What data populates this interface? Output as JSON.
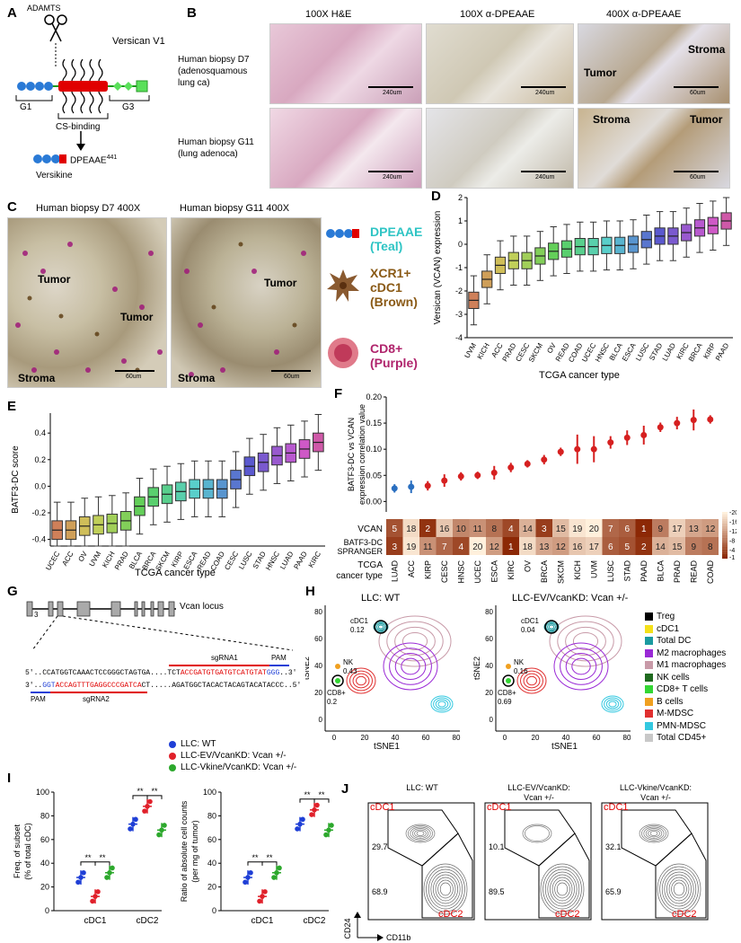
{
  "panel_labels": [
    "A",
    "B",
    "C",
    "D",
    "E",
    "F",
    "G",
    "H",
    "I",
    "J"
  ],
  "panel_a": {
    "enzyme": "ADAMTS",
    "protein": "Versican V1",
    "domains": [
      "G1",
      "G3"
    ],
    "cs_label": "CS-binding",
    "product": "DPEAAE",
    "product_sup": "441",
    "product_name": "Versikine"
  },
  "panel_b": {
    "col_titles": [
      "100X H&E",
      "100X α-DPEAAE",
      "400X α-DPEAAE"
    ],
    "row1_label": [
      "Human biopsy D7",
      "(adenosquamous",
      "lung ca)"
    ],
    "row2_label": [
      "Human biopsy G11",
      "(lung adenoca)"
    ],
    "scale_100x": "240um",
    "scale_400x": "60um",
    "tumor": "Tumor",
    "stroma": "Stroma"
  },
  "panel_c": {
    "titles": [
      "Human biopsy D7 400X",
      "Human biopsy G11 400X"
    ],
    "tumor": "Tumor",
    "stroma": "Stroma",
    "scale": "60um",
    "legend": [
      {
        "l1": "DPEAAE",
        "l2": "(Teal)",
        "color": "#2ec4c4"
      },
      {
        "l1": "XCR1+",
        "l2": "cDC1",
        "l3": "(Brown)",
        "color": "#8a5a16"
      },
      {
        "l1": "CD8+",
        "l2": "(Purple)",
        "color": "#b0246c"
      }
    ]
  },
  "chart_data": [
    {
      "panel": "D",
      "type": "box",
      "ylabel": "Versican (VCAN) expression",
      "xlabel": "TCGA cancer type",
      "ylim": [
        -4,
        2
      ],
      "yticks": [
        -4,
        -3,
        -2,
        -1,
        0,
        1,
        2
      ],
      "categories": [
        "UVM",
        "KICH",
        "ACC",
        "PRAD",
        "CESC",
        "SKCM",
        "OV",
        "READ",
        "COAD",
        "UCEC",
        "HNSC",
        "BLCA",
        "ESCA",
        "LUSC",
        "STAD",
        "LUAD",
        "KIRC",
        "BRCA",
        "KIRP",
        "PAAD"
      ],
      "medians": [
        -2.4,
        -1.5,
        -0.9,
        -0.7,
        -0.7,
        -0.5,
        -0.3,
        -0.2,
        -0.1,
        -0.1,
        -0.05,
        -0.05,
        0.0,
        0.2,
        0.35,
        0.35,
        0.5,
        0.7,
        0.8,
        1.0
      ]
    },
    {
      "panel": "E",
      "type": "box",
      "ylabel": "BATF3-DC score",
      "xlabel": "TCGA cancer type",
      "ylim": [
        -0.45,
        0.55
      ],
      "yticks": [
        -0.4,
        -0.2,
        0.0,
        0.2,
        0.4
      ],
      "categories": [
        "UCEC",
        "ACC",
        "OV",
        "UVM",
        "KICH",
        "PRAD",
        "BLCA",
        "BRCA",
        "SKCM",
        "KIRP",
        "ESCA",
        "READ",
        "COAD",
        "CESC",
        "LUSC",
        "STAD",
        "HNSC",
        "LUAD",
        "PAAD",
        "KIRC"
      ],
      "medians": [
        -0.33,
        -0.33,
        -0.3,
        -0.29,
        -0.28,
        -0.26,
        -0.15,
        -0.08,
        -0.06,
        -0.04,
        -0.02,
        -0.02,
        -0.02,
        0.05,
        0.15,
        0.18,
        0.23,
        0.25,
        0.28,
        0.33
      ]
    },
    {
      "panel": "F",
      "type": "scatter",
      "ylabel": [
        "BATF3-DC vs VCAN",
        "expression correlation value"
      ],
      "ylim": [
        -0.02,
        0.2
      ],
      "yticks": [
        0.0,
        0.05,
        0.1,
        0.15,
        0.2
      ],
      "categories": [
        "LUAD",
        "ACC",
        "KIRP",
        "CESC",
        "HNSC",
        "UCEC",
        "ESCA",
        "KIRC",
        "OV",
        "BRCA",
        "SKCM",
        "KICH",
        "UVM",
        "LUSC",
        "STAD",
        "PAAD",
        "BLCA",
        "PRAD",
        "READ",
        "COAD"
      ],
      "values": [
        0.025,
        0.028,
        0.03,
        0.04,
        0.048,
        0.05,
        0.055,
        0.065,
        0.072,
        0.08,
        0.095,
        0.1,
        0.1,
        0.113,
        0.122,
        0.127,
        0.142,
        0.15,
        0.156,
        0.157
      ],
      "err": [
        0.008,
        0.012,
        0.009,
        0.012,
        0.008,
        0.007,
        0.013,
        0.009,
        0.007,
        0.009,
        0.008,
        0.028,
        0.025,
        0.012,
        0.014,
        0.018,
        0.009,
        0.012,
        0.02,
        0.008
      ],
      "colors": [
        "#2a6fc0",
        "#2a6fc0",
        "#d62020",
        "#d62020",
        "#d62020",
        "#d62020",
        "#d62020",
        "#d62020",
        "#d62020",
        "#d62020",
        "#d62020",
        "#d62020",
        "#d62020",
        "#d62020",
        "#d62020",
        "#d62020",
        "#d62020",
        "#d62020",
        "#d62020",
        "#d62020"
      ],
      "heatmap_rows": [
        "VCAN",
        [
          "BATF3-DC",
          "SPRANGER"
        ]
      ],
      "heatmap_values": [
        [
          5,
          18,
          2,
          16,
          10,
          11,
          8,
          4,
          14,
          3,
          15,
          19,
          20,
          7,
          6,
          1,
          9,
          17,
          13,
          12
        ],
        [
          3,
          19,
          11,
          7,
          4,
          20,
          12,
          1,
          18,
          13,
          12,
          16,
          17,
          6,
          5,
          2,
          14,
          15,
          9,
          8
        ]
      ],
      "heatmap_legend": [
        20,
        16,
        12,
        8,
        4,
        1
      ],
      "xlabel_line1": "TCGA",
      "xlabel_line2": "cancer type"
    },
    {
      "panel": "I-left",
      "type": "scatter",
      "ylabel": [
        "Freq. of subset",
        "(% of total cDC)"
      ],
      "ylim": [
        0,
        100
      ],
      "yticks": [
        0,
        20,
        40,
        60,
        80,
        100
      ],
      "categories": [
        "cDC1",
        "cDC2"
      ],
      "series": [
        {
          "name": "LLC: WT",
          "color": "#1f3fd6",
          "values": [
            28,
            73
          ]
        },
        {
          "name": "LLC-EV/VcanKD: Vcan +/-",
          "color": "#e0202a",
          "values": [
            12,
            88
          ]
        },
        {
          "name": "LLC-Vkine/VcanKD: Vcan +/-",
          "color": "#2ca82c",
          "values": [
            32,
            68
          ]
        }
      ],
      "sig": "**"
    },
    {
      "panel": "I-right",
      "type": "scatter",
      "ylabel": [
        "Ratio of absolute cell counts",
        "(per mg of tumor)"
      ],
      "ylim": [
        0,
        100
      ],
      "yticks": [
        0,
        20,
        40,
        60,
        80,
        100
      ],
      "categories": [
        "cDC1",
        "cDC2"
      ],
      "series": [
        {
          "name": "LLC: WT",
          "color": "#1f3fd6",
          "values": [
            28,
            73
          ]
        },
        {
          "name": "LLC-EV/VcanKD: Vcan +/-",
          "color": "#e0202a",
          "values": [
            12,
            85
          ]
        },
        {
          "name": "LLC-Vkine/VcanKD: Vcan +/-",
          "color": "#2ca82c",
          "values": [
            32,
            68
          ]
        }
      ],
      "sig": "**"
    }
  ],
  "panel_g": {
    "locus": "Vcan locus",
    "exon": "3",
    "sg1": "sgRNA1",
    "sg2": "sgRNA2",
    "pam": "PAM",
    "seq1_pre": "5'..CCATGGTCAAACTCCGGGCTAGTGA....TCT",
    "seq1_red": "ACCGATGTGATGTCATGTAT",
    "seq1_blue": "GGG",
    "seq1_post": "..3'",
    "seq2_pre": "3'..",
    "seq2_blue": "GGT",
    "seq2_red": "ACCAGTTTGAGGCCCGATCA",
    "seq2_post": "CT.....AGATGGCTACACTACAGTACATACCC..5'"
  },
  "panel_h": {
    "titles": [
      "LLC: WT",
      "LLC-EV/VcanKD: Vcan +/-"
    ],
    "xlabel": "tSNE1",
    "ylabel": "tSNE2",
    "xticks": [
      "0",
      "20",
      "40",
      "60",
      "80"
    ],
    "yticks": [
      "0",
      "20",
      "40",
      "60",
      "80"
    ],
    "left": {
      "cdc1": "cDC1",
      "cdc1_val": "0.12",
      "nk": "NK",
      "nk_val": "0.43",
      "cd8": "CD8+",
      "cd8_val": "0.2"
    },
    "right": {
      "cdc1": "cDC1",
      "cdc1_val": "0.04",
      "nk": "NK",
      "nk_val": "0.16",
      "cd8": "CD8+",
      "cd8_val": "0.69"
    },
    "legend": [
      {
        "label": "Treg",
        "color": "#000000"
      },
      {
        "label": "cDC1",
        "color": "#f4e01a"
      },
      {
        "label": "Total DC",
        "color": "#1a9aa0"
      },
      {
        "label": "M2 macrophages",
        "color": "#9a2ad6"
      },
      {
        "label": "M1 macrophages",
        "color": "#c89aa8"
      },
      {
        "label": "NK cells",
        "color": "#1f6a1f"
      },
      {
        "label": "CD8+ T cells",
        "color": "#33d633"
      },
      {
        "label": "B cells",
        "color": "#f0a020"
      },
      {
        "label": "M-MDSC",
        "color": "#e03030"
      },
      {
        "label": "PMN-MDSC",
        "color": "#33c8e0"
      },
      {
        "label": "Total CD45+",
        "color": "#c8c8c8"
      }
    ]
  },
  "panel_i_legend": [
    {
      "label": "LLC: WT",
      "color": "#1f3fd6"
    },
    {
      "label": "LLC-EV/VcanKD: Vcan +/-",
      "color": "#e0202a"
    },
    {
      "label": "LLC-Vkine/VcanKD: Vcan +/-",
      "color": "#2ca82c"
    }
  ],
  "panel_j": {
    "titles": [
      [
        "LLC: WT"
      ],
      [
        "LLC-EV/VcanKD:",
        "Vcan +/-"
      ],
      [
        "LLC-Vkine/VcanKD:",
        "Vcan +/-"
      ]
    ],
    "cdc1": "cDC1",
    "cdc2": "cDC2",
    "values": [
      [
        "29.7",
        "68.9"
      ],
      [
        "10.1",
        "89.5"
      ],
      [
        "32.1",
        "65.9"
      ]
    ],
    "ylabel": "CD24",
    "xlabel": "CD11b"
  }
}
